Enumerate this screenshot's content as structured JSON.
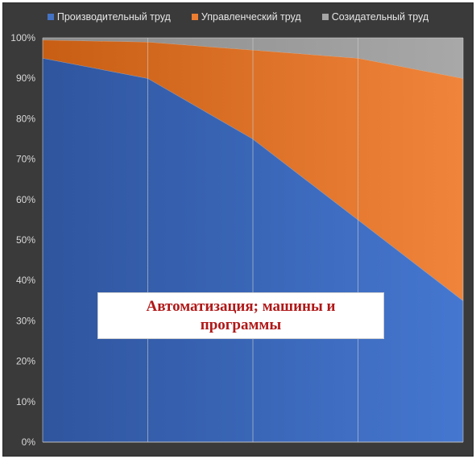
{
  "chart_data": {
    "type": "area",
    "stacked": "percent",
    "title": "",
    "xlabel": "",
    "ylabel": "",
    "categories": [
      "",
      "",
      "",
      "",
      ""
    ],
    "ylim": [
      0,
      100
    ],
    "yticks": [
      "0%",
      "10%",
      "20%",
      "30%",
      "40%",
      "50%",
      "60%",
      "70%",
      "80%",
      "90%",
      "100%"
    ],
    "grid": "vertical",
    "legend_position": "top",
    "series": [
      {
        "name": "Производительный труд",
        "values": [
          95,
          90,
          75,
          55,
          35
        ],
        "color": "#4472c4"
      },
      {
        "name": "Управленческий труд",
        "values": [
          4.5,
          9,
          22,
          40,
          55
        ],
        "color": "#ed7d31"
      },
      {
        "name": "Созидательный труд",
        "values": [
          0.5,
          1,
          3,
          5,
          10
        ],
        "color": "#a5a5a5"
      }
    ],
    "annotation": "Автоматизация; машины и программы"
  },
  "colors": {
    "background": "#3a3a3a",
    "annotation_text": "#b01818"
  }
}
